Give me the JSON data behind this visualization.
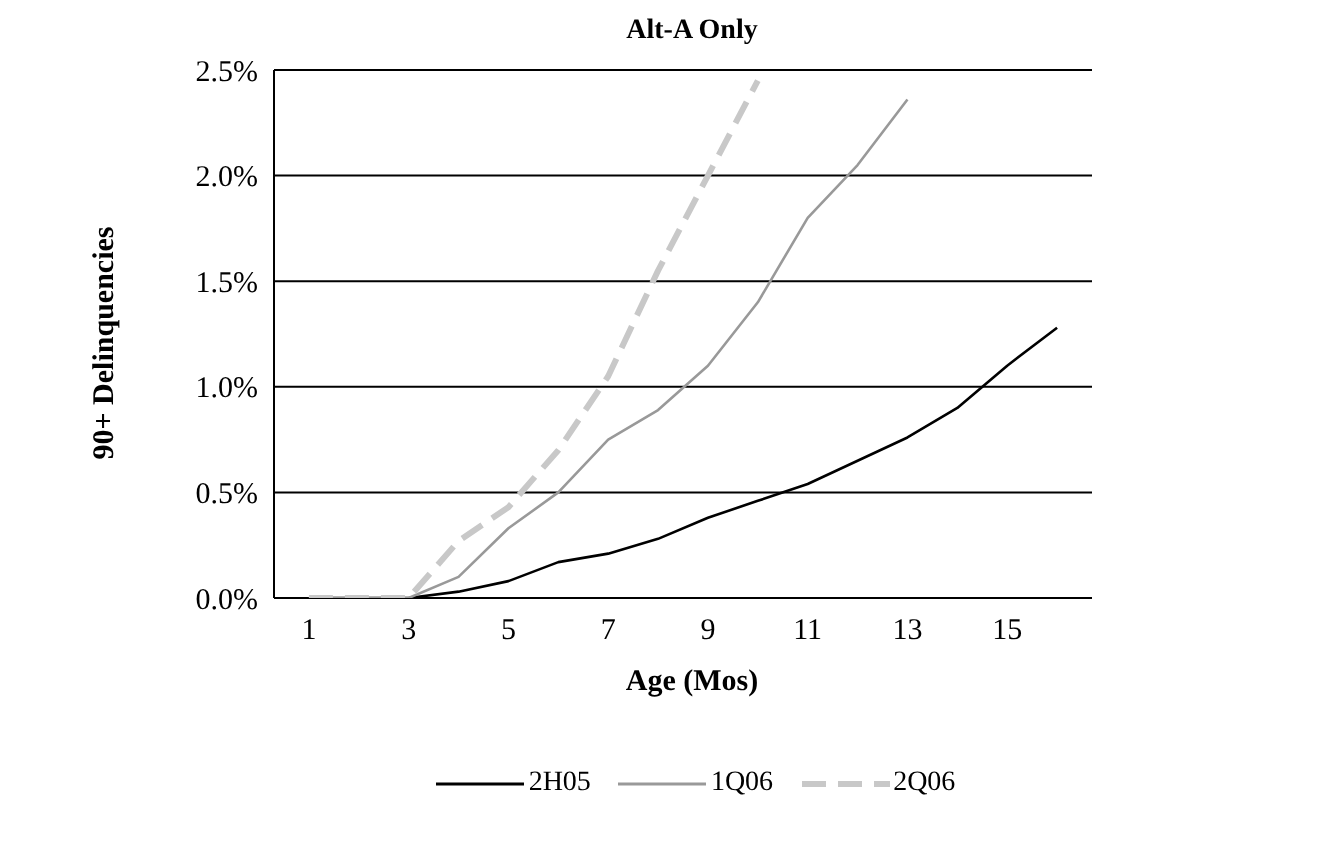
{
  "chart_data": {
    "type": "line",
    "title": "Alt-A Only",
    "xlabel": "Age (Mos)",
    "ylabel": "90+ Delinquencies",
    "x": [
      1,
      2,
      3,
      4,
      5,
      6,
      7,
      8,
      9,
      10,
      11,
      12,
      13,
      14,
      15,
      16
    ],
    "xlim": [
      0.3,
      16.7
    ],
    "xticks": [
      1,
      3,
      5,
      7,
      9,
      11,
      13,
      15
    ],
    "series": [
      {
        "name": "2H05",
        "color": "#000000",
        "line_style": "solid",
        "values": [
          0,
          0,
          0,
          0.03,
          0.08,
          0.17,
          0.21,
          0.28,
          0.38,
          0.46,
          0.54,
          0.65,
          0.76,
          0.9,
          1.1,
          1.28
        ]
      },
      {
        "name": "1Q06",
        "color": "#999999",
        "line_style": "solid",
        "values": [
          0,
          0,
          0,
          0.1,
          0.33,
          0.5,
          0.75,
          0.89,
          1.1,
          1.4,
          1.8,
          2.05,
          2.36,
          null,
          null,
          null
        ]
      },
      {
        "name": "2Q06",
        "color": "#c8c8c8",
        "line_style": "dashed",
        "values": [
          0,
          0,
          0,
          0.27,
          0.43,
          0.7,
          1.05,
          1.55,
          2.0,
          2.45,
          null,
          null,
          null,
          null,
          null,
          null
        ]
      }
    ],
    "ylim": [
      0,
      2.5
    ],
    "yticks": [
      {
        "value": 0,
        "label": "0.0%"
      },
      {
        "value": 0.5,
        "label": "0.5%"
      },
      {
        "value": 1,
        "label": "1.0%"
      },
      {
        "value": 1.5,
        "label": "1.5%"
      },
      {
        "value": 2,
        "label": "2.0%"
      },
      {
        "value": 2.5,
        "label": "2.5%"
      }
    ],
    "grid": "y",
    "legend": "bottom",
    "marker": "none"
  }
}
